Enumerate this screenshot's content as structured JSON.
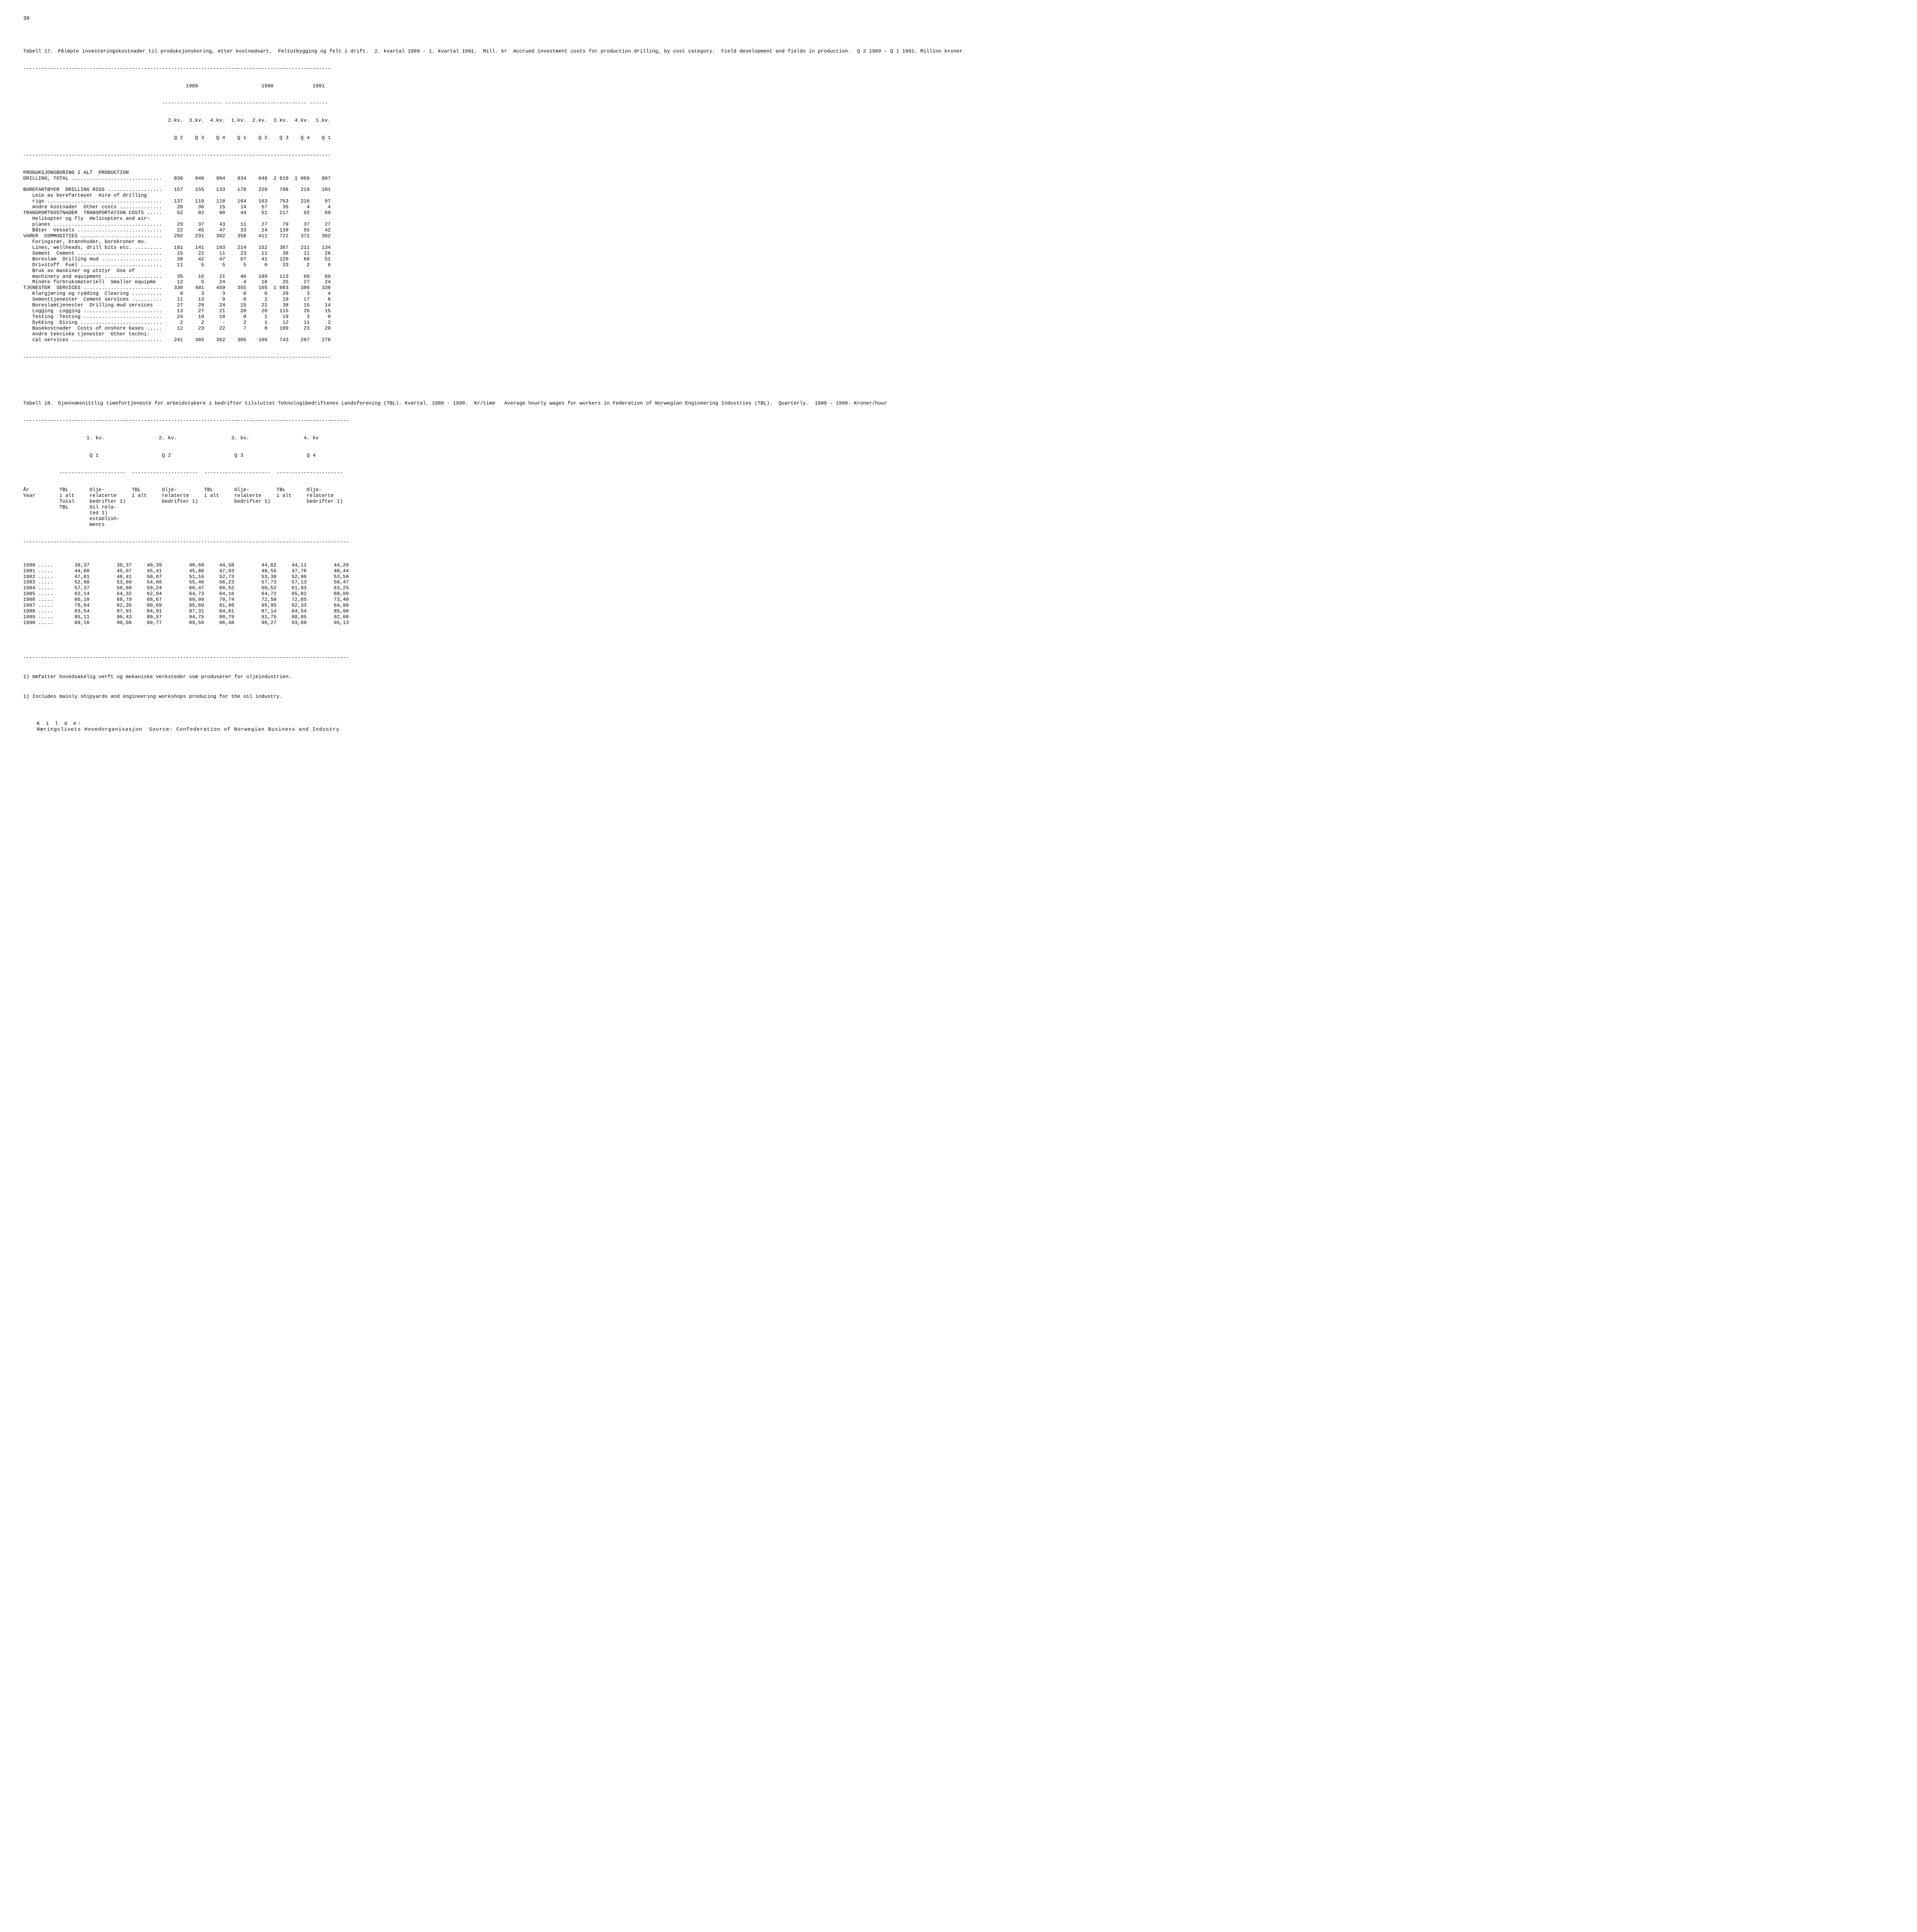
{
  "page_number": "36",
  "table17": {
    "label": "Tabell 17.",
    "title": "Påløpte investeringskostnader til produksjonsboring, etter kostnadsart.  Feltutbygging og felt i drift.  2. kvartal 1989 - 1. kvartal 1991.  Mill. kr  Accrued investment costs for production drilling, by cost category.  Field development and fields in production.  Q 2 1989 - Q 1 1991. Million kroner",
    "year_headers": [
      "1989",
      "1990",
      "1991"
    ],
    "col_headers_line1": [
      "2.kv.",
      "3.kv.",
      "4.kv.",
      "1.kv.",
      "2.kv.",
      "3.kv.",
      "4.kv.",
      "1.kv."
    ],
    "col_headers_line2": [
      "Q 2",
      "Q 3",
      "Q 4",
      "Q 1",
      "Q 2",
      "Q 3",
      "Q 4",
      "Q 1"
    ],
    "rows": [
      {
        "label": "PRODUKSJONSBORING I ALT  PRODUCTION",
        "vals": []
      },
      {
        "label": "DRILLING, TOTAL ..............................",
        "vals": [
          "830",
          "948",
          "984",
          "934",
          "848",
          "2 810",
          "1 069",
          "807"
        ]
      },
      {
        "label": "",
        "vals": []
      },
      {
        "label": "BOREFARTØYER  DRILLING RIGS ..................",
        "vals": [
          "157",
          "155",
          "133",
          "178",
          "220",
          "788",
          "219",
          "101"
        ]
      },
      {
        "label": "   Leie av borefartøyer  Hire of drilling",
        "vals": []
      },
      {
        "label": "   rigs ......................................",
        "vals": [
          "137",
          "119",
          "118",
          "164",
          "163",
          "753",
          "216",
          "97"
        ]
      },
      {
        "label": "   Andre kostnader  Other costs ..............",
        "vals": [
          "20",
          "36",
          "15",
          "14",
          "57",
          "35",
          "4",
          "4"
        ]
      },
      {
        "label": "TRANSPORTKOSTNADER  TRANSPORTATION COSTS .....",
        "vals": [
          "52",
          "82",
          "90",
          "44",
          "51",
          "217",
          "92",
          "69"
        ]
      },
      {
        "label": "   Helikopter og fly  Helicopters and air-",
        "vals": []
      },
      {
        "label": "   planes ....................................",
        "vals": [
          "29",
          "37",
          "43",
          "11",
          "27",
          "79",
          "37",
          "27"
        ]
      },
      {
        "label": "   Båter  Vessels ............................",
        "vals": [
          "22",
          "45",
          "47",
          "33",
          "24",
          "138",
          "55",
          "42"
        ]
      },
      {
        "label": "VARER  COMMODITIES ...........................",
        "vals": [
          "292",
          "231",
          "302",
          "358",
          "411",
          "722",
          "372",
          "302"
        ]
      },
      {
        "label": "   Foringsrør, brønnhoder, borekroner mv.",
        "vals": []
      },
      {
        "label": "   Lines, wellheads, drill bits etc. .........",
        "vals": [
          "181",
          "141",
          "193",
          "214",
          "152",
          "387",
          "211",
          "134"
        ]
      },
      {
        "label": "   Sement  Cement ............................",
        "vals": [
          "15",
          "22",
          "11",
          "23",
          "11",
          "38",
          "11",
          "26"
        ]
      },
      {
        "label": "   Boreslam  Drilling mud ....................",
        "vals": [
          "38",
          "42",
          "47",
          "67",
          "41",
          "126",
          "60",
          "51"
        ]
      },
      {
        "label": "   Drivstoff  Fuel ...........................",
        "vals": [
          "11",
          "5",
          "5",
          "5",
          "0",
          "33",
          "2",
          "6"
        ]
      },
      {
        "label": "   Bruk av maskiner og utstyr  Use of",
        "vals": []
      },
      {
        "label": "   machinery and equipment ...................",
        "vals": [
          "35",
          "16",
          "21",
          "46",
          "189",
          "113",
          "60",
          "60"
        ]
      },
      {
        "label": "   Mindre forbruksmateriell  Smaller equipme",
        "vals": [
          "12",
          "5",
          "24",
          "4",
          "18",
          "25",
          "27",
          "24"
        ]
      },
      {
        "label": "TJENESTER  SERVICES ..........................",
        "vals": [
          "330",
          "481",
          "459",
          "355",
          "165",
          "1 083",
          "386",
          "336"
        ]
      },
      {
        "label": "   Klargjøring og rydding  Clearing ..........",
        "vals": [
          "0",
          "3",
          "3",
          "0",
          "0",
          "29",
          "3",
          "4"
        ]
      },
      {
        "label": "   Sementtjenester  Cement services ..........",
        "vals": [
          "11",
          "13",
          "9",
          "6",
          "2",
          "19",
          "17",
          "6"
        ]
      },
      {
        "label": "   Boreslamtjenester  Drilling mud services",
        "vals": [
          "27",
          "29",
          "24",
          "15",
          "22",
          "38",
          "15",
          "14"
        ]
      },
      {
        "label": "   Logging  Logging ..........................",
        "vals": [
          "13",
          "27",
          "21",
          "20",
          "20",
          "115",
          "26",
          "15"
        ]
      },
      {
        "label": "   Testing  Testing ..........................",
        "vals": [
          "24",
          "19",
          "18",
          "0",
          "1",
          "19",
          "3",
          "0"
        ]
      },
      {
        "label": "   Dykking  Diving ...........................",
        "vals": [
          "2",
          "2",
          "-",
          "2",
          "1",
          "12",
          "11",
          "2"
        ]
      },
      {
        "label": "   Basekostnader  Costs of onshore bases .....",
        "vals": [
          "12",
          "23",
          "22",
          "7",
          "8",
          "109",
          "23",
          "20"
        ]
      },
      {
        "label": "   Andre tekniske tjenester  Other techni-",
        "vals": []
      },
      {
        "label": "   cal services ..............................",
        "vals": [
          "241",
          "365",
          "362",
          "305",
          "109",
          "743",
          "287",
          "276"
        ]
      }
    ]
  },
  "table18": {
    "label": "Tabell 18.",
    "title": "Gjennomsnittlig timefortjeneste for arbeidstakere i bedrifter tilsluttet Teknologibedriftenes Landsforening (TBL). Kvartal. 1980 - 1990.  Kr/time   Average hourly wages for workers in Federation of Norwegian Engineering Industries (TBL).  Quarterly.  1980 - 1990. Kroner/hour",
    "q_headers": [
      {
        "line1": "1. kv.",
        "line2": "Q 1"
      },
      {
        "line1": "2. kv.",
        "line2": "Q 2"
      },
      {
        "line1": "3. kv.",
        "line2": "Q 3"
      },
      {
        "line1": "4. kv",
        "line2": "Q 4"
      }
    ],
    "row_header_label": "År\nYear",
    "sub_cols": {
      "tbl": "TBL\ni alt\nTotal\nTBL",
      "olje": "Olje-\nrelaterte\nbedrifter 1)\nOil rela-\nted 1)\nestablish-\nments",
      "tbl_short": "TBL\ni alt",
      "olje_short": "Olje-\nrelaterte\nbedrifter 1)"
    },
    "rows": [
      {
        "year": "1980 .....",
        "vals": [
          "39,37",
          "39,37",
          "40,39",
          "40,68",
          "44,58",
          "44,62",
          "44,11",
          "44,20"
        ]
      },
      {
        "year": "1981 .....",
        "vals": [
          "44,60",
          "45,07",
          "45,41",
          "45,86",
          "47,93",
          "48,55",
          "47,76",
          "48,44"
        ]
      },
      {
        "year": "1982 .....",
        "vals": [
          "47,81",
          "48,41",
          "50,67",
          "51,16",
          "52,73",
          "53,38",
          "52,98",
          "53,50"
        ]
      },
      {
        "year": "1983 .....",
        "vals": [
          "52,98",
          "53,60",
          "54,68",
          "55,46",
          "56,23",
          "57,73",
          "57,13",
          "58,47"
        ]
      },
      {
        "year": "1984 .....",
        "vals": [
          "57,37",
          "58,80",
          "59,24",
          "60,47",
          "60,52",
          "60,52",
          "61,93",
          "63,25"
        ]
      },
      {
        "year": "1985 .....",
        "vals": [
          "62,14",
          "64,32",
          "62,94",
          "64,73",
          "64,16",
          "64,72",
          "65,82",
          "68,09"
        ]
      },
      {
        "year": "1986 .....",
        "vals": [
          "66,10",
          "68,79",
          "68,67",
          "69,99",
          "70,74",
          "72,50",
          "72,65",
          "73,40"
        ]
      },
      {
        "year": "1987 .....",
        "vals": [
          "78,64",
          "82,35",
          "80,69",
          "85,69",
          "81,86",
          "85,95",
          "82,33",
          "84,98"
        ]
      },
      {
        "year": "1988 .....",
        "vals": [
          "83,54",
          "87,91",
          "84,91",
          "87,31",
          "84,81",
          "87,14",
          "84,54",
          "85,96"
        ]
      },
      {
        "year": "1989 .....",
        "vals": [
          "85,11",
          "90,43",
          "89,57",
          "94,75",
          "88,79",
          "91,75",
          "88,85",
          "92,08"
        ]
      },
      {
        "year": "1990 .....",
        "vals": [
          "89,16",
          "90,56",
          "89,77",
          "89,59",
          "96,48",
          "96,27",
          "93,89",
          "95,13"
        ]
      }
    ],
    "footnote1": "1) Omfatter hovedsakelig verft og mekaniske verksteder som produserer for oljeindustrien.",
    "footnote2": "1) Includes mainly shipyards and engineering workshops producing for the oil industry.",
    "source_label": "K i l d e:",
    "source_text": "Næringslivets Hovedorganisasjon  Source: Confederation of Norwegian Business and Industry"
  },
  "style": {
    "background_color": "#ffffff",
    "text_color": "#000000",
    "font_family": "Courier New",
    "font_size_pt": 10,
    "col_widths_t17": [
      46,
      7,
      7,
      7,
      7,
      7,
      7,
      7,
      7
    ],
    "col_widths_t18": [
      12,
      10,
      14,
      10,
      14,
      10,
      14,
      10,
      14
    ],
    "dash_char": "-"
  }
}
